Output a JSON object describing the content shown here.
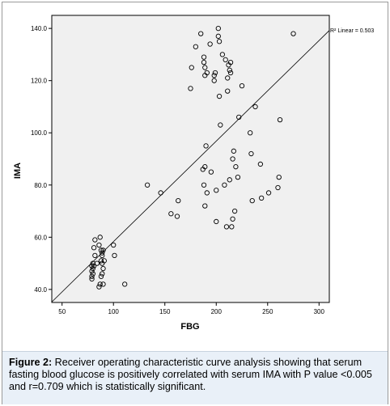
{
  "chart_data": {
    "type": "scatter",
    "xlabel": "FBG",
    "ylabel": "IMA",
    "xlim": [
      40,
      310
    ],
    "ylim": [
      35,
      145
    ],
    "xticks": [
      50,
      100,
      150,
      200,
      250,
      300
    ],
    "yticks": [
      40,
      60,
      80,
      100,
      120,
      140
    ],
    "xtick_labels": [
      "50",
      "100",
      "150",
      "200",
      "250",
      "300"
    ],
    "ytick_labels": [
      "40.0",
      "60.0",
      "80.0",
      "100.0",
      "120.0",
      "140.0"
    ],
    "grid": false,
    "fit_line": {
      "label": "R² Linear = 0.503",
      "x": [
        40,
        310
      ],
      "y": [
        35.2,
        139.2
      ]
    },
    "points": [
      [
        79,
        44
      ],
      [
        79,
        45
      ],
      [
        80,
        46
      ],
      [
        79,
        47
      ],
      [
        80,
        48
      ],
      [
        81,
        49
      ],
      [
        79,
        49
      ],
      [
        80,
        50
      ],
      [
        84,
        50
      ],
      [
        82,
        53
      ],
      [
        81,
        56
      ],
      [
        82,
        59
      ],
      [
        86,
        57
      ],
      [
        87,
        60
      ],
      [
        88,
        55
      ],
      [
        89,
        53
      ],
      [
        88,
        51
      ],
      [
        89,
        50
      ],
      [
        90,
        48
      ],
      [
        89,
        46
      ],
      [
        88,
        45
      ],
      [
        87,
        42
      ],
      [
        86,
        41
      ],
      [
        90,
        42
      ],
      [
        91,
        51
      ],
      [
        90,
        55
      ],
      [
        89,
        54
      ],
      [
        100,
        57
      ],
      [
        101,
        53
      ],
      [
        111,
        42
      ],
      [
        133,
        80
      ],
      [
        146,
        77
      ],
      [
        156,
        69
      ],
      [
        162,
        68
      ],
      [
        163,
        74
      ],
      [
        175,
        117
      ],
      [
        176,
        125
      ],
      [
        180,
        133
      ],
      [
        185,
        138
      ],
      [
        188,
        129
      ],
      [
        188,
        127
      ],
      [
        189,
        125
      ],
      [
        189,
        122
      ],
      [
        191,
        123
      ],
      [
        187,
        86
      ],
      [
        188,
        80
      ],
      [
        189,
        87
      ],
      [
        189,
        72
      ],
      [
        190,
        95
      ],
      [
        191,
        77
      ],
      [
        194,
        134
      ],
      [
        195,
        85
      ],
      [
        198,
        120
      ],
      [
        198,
        122
      ],
      [
        199,
        123
      ],
      [
        200,
        78
      ],
      [
        200,
        66
      ],
      [
        202,
        137
      ],
      [
        202,
        140
      ],
      [
        203,
        135
      ],
      [
        203,
        114
      ],
      [
        204,
        103
      ],
      [
        206,
        130
      ],
      [
        208,
        80
      ],
      [
        209,
        128
      ],
      [
        210,
        64
      ],
      [
        211,
        121
      ],
      [
        211,
        116
      ],
      [
        212,
        126
      ],
      [
        213,
        124
      ],
      [
        213,
        82
      ],
      [
        214,
        123
      ],
      [
        214,
        127
      ],
      [
        215,
        64
      ],
      [
        216,
        67
      ],
      [
        216,
        90
      ],
      [
        217,
        93
      ],
      [
        218,
        70
      ],
      [
        219,
        87
      ],
      [
        221,
        83
      ],
      [
        222,
        106
      ],
      [
        225,
        118
      ],
      [
        233,
        100
      ],
      [
        234,
        92
      ],
      [
        235,
        74
      ],
      [
        238,
        110
      ],
      [
        243,
        88
      ],
      [
        244,
        75
      ],
      [
        251,
        77
      ],
      [
        260,
        79
      ],
      [
        261,
        83
      ],
      [
        262,
        105
      ],
      [
        275,
        138
      ]
    ]
  },
  "caption": {
    "label": "Figure 2:",
    "text": " Receiver operating characteristic curve analysis showing that serum fasting blood glucose is positively correlated with serum IMA with P value <0.005 and r=0.709 which is statistically significant."
  }
}
